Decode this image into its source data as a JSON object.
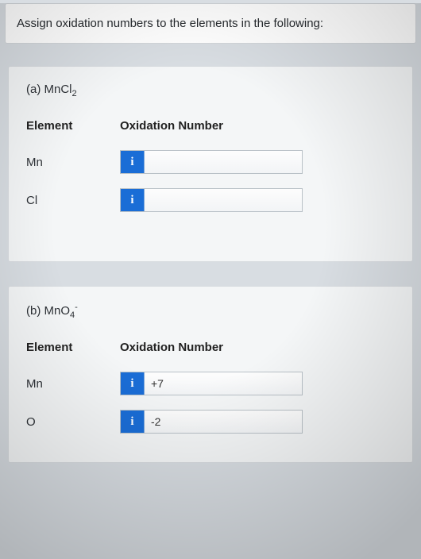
{
  "question": "Assign oxidation numbers to the elements in the following:",
  "info_icon_label": "i",
  "parts": {
    "a": {
      "label_prefix": "(a) MnCl",
      "label_sub": "2",
      "headers": {
        "element": "Element",
        "ox": "Oxidation Number"
      },
      "rows": [
        {
          "element": "Mn",
          "value": ""
        },
        {
          "element": "Cl",
          "value": ""
        }
      ]
    },
    "b": {
      "label_prefix": "(b) MnO",
      "label_sub": "4",
      "label_sup": "-",
      "headers": {
        "element": "Element",
        "ox": "Oxidation Number"
      },
      "rows": [
        {
          "element": "Mn",
          "value": "+7"
        },
        {
          "element": "O",
          "value": "-2"
        }
      ]
    }
  }
}
